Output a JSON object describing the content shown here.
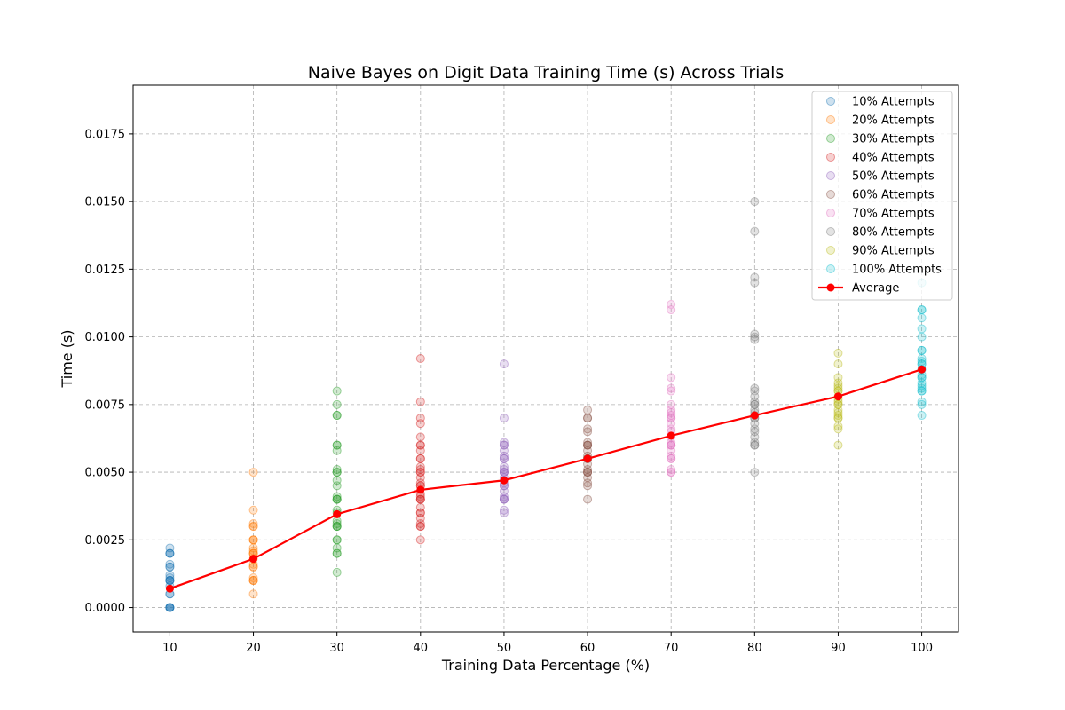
{
  "chart_data": {
    "type": "scatter",
    "title": "Naive Bayes on Digit Data Training Time (s) Across Trials",
    "xlabel": "Training Data Percentage (%)",
    "ylabel": "Time (s)",
    "xlim": [
      5.6,
      104.4
    ],
    "ylim": [
      -0.0009,
      0.0193
    ],
    "x_ticks": [
      10,
      20,
      30,
      40,
      50,
      60,
      70,
      80,
      90,
      100
    ],
    "y_ticks": [
      0.0,
      0.0025,
      0.005,
      0.0075,
      0.01,
      0.0125,
      0.015,
      0.0175
    ],
    "y_tick_labels": [
      "0.0000",
      "0.0025",
      "0.0050",
      "0.0075",
      "0.0100",
      "0.0125",
      "0.0150",
      "0.0175"
    ],
    "grid": true,
    "legend_position": "top-right",
    "series": [
      {
        "name": "10% Attempts",
        "color": "#1f77b4",
        "x": 10,
        "values": [
          0.0,
          0.0,
          0.0,
          0.0,
          0.0,
          0.0005,
          0.0005,
          0.0008,
          0.001,
          0.001,
          0.001,
          0.001,
          0.0011,
          0.0012,
          0.0015,
          0.0015,
          0.0016,
          0.002,
          0.002,
          0.002,
          0.0022
        ]
      },
      {
        "name": "20% Attempts",
        "color": "#ff7f0e",
        "x": 20,
        "values": [
          0.0005,
          0.001,
          0.001,
          0.001,
          0.0011,
          0.0015,
          0.0015,
          0.0016,
          0.0018,
          0.002,
          0.002,
          0.002,
          0.0021,
          0.0022,
          0.0025,
          0.0025,
          0.0025,
          0.003,
          0.003,
          0.0031,
          0.0036,
          0.005
        ]
      },
      {
        "name": "30% Attempts",
        "color": "#2ca02c",
        "x": 30,
        "values": [
          0.0013,
          0.002,
          0.002,
          0.0022,
          0.0025,
          0.0025,
          0.003,
          0.003,
          0.003,
          0.0031,
          0.0032,
          0.0035,
          0.0036,
          0.004,
          0.004,
          0.004,
          0.0041,
          0.0045,
          0.0047,
          0.005,
          0.005,
          0.0051,
          0.0058,
          0.006,
          0.006,
          0.0071,
          0.0071,
          0.0075,
          0.008
        ]
      },
      {
        "name": "40% Attempts",
        "color": "#d62728",
        "x": 40,
        "values": [
          0.0025,
          0.003,
          0.003,
          0.0031,
          0.0033,
          0.0035,
          0.0035,
          0.0037,
          0.004,
          0.004,
          0.004,
          0.0041,
          0.0042,
          0.0045,
          0.0045,
          0.0046,
          0.0048,
          0.005,
          0.005,
          0.0051,
          0.0052,
          0.0055,
          0.0055,
          0.0058,
          0.006,
          0.006,
          0.0063,
          0.0068,
          0.007,
          0.0076,
          0.0092
        ]
      },
      {
        "name": "50% Attempts",
        "color": "#9467bd",
        "x": 50,
        "values": [
          0.0035,
          0.0036,
          0.004,
          0.004,
          0.004,
          0.0041,
          0.0043,
          0.0045,
          0.0045,
          0.0046,
          0.0048,
          0.005,
          0.005,
          0.005,
          0.0051,
          0.0052,
          0.0055,
          0.0055,
          0.0056,
          0.0058,
          0.006,
          0.006,
          0.0061,
          0.007,
          0.009
        ]
      },
      {
        "name": "60% Attempts",
        "color": "#8c564b",
        "x": 60,
        "values": [
          0.004,
          0.0045,
          0.0046,
          0.0048,
          0.005,
          0.005,
          0.005,
          0.0051,
          0.0053,
          0.0055,
          0.0055,
          0.0055,
          0.0056,
          0.0058,
          0.006,
          0.006,
          0.006,
          0.0061,
          0.0065,
          0.0066,
          0.007,
          0.007,
          0.0073
        ]
      },
      {
        "name": "70% Attempts",
        "color": "#e377c2",
        "x": 70,
        "values": [
          0.005,
          0.005,
          0.0051,
          0.0055,
          0.0055,
          0.0056,
          0.0058,
          0.006,
          0.006,
          0.006,
          0.0061,
          0.0063,
          0.0065,
          0.0066,
          0.0068,
          0.007,
          0.007,
          0.0071,
          0.0072,
          0.0073,
          0.0075,
          0.008,
          0.0081,
          0.0085,
          0.011,
          0.0112
        ]
      },
      {
        "name": "80% Attempts",
        "color": "#7f7f7f",
        "x": 80,
        "values": [
          0.005,
          0.006,
          0.006,
          0.0061,
          0.0063,
          0.0065,
          0.0066,
          0.0068,
          0.007,
          0.007,
          0.0071,
          0.0072,
          0.0073,
          0.0075,
          0.0075,
          0.0076,
          0.0078,
          0.008,
          0.0081,
          0.0099,
          0.01,
          0.0101,
          0.012,
          0.0122,
          0.0139,
          0.015
        ]
      },
      {
        "name": "90% Attempts",
        "color": "#bcbd22",
        "x": 90,
        "values": [
          0.006,
          0.0066,
          0.0067,
          0.007,
          0.007,
          0.0071,
          0.0072,
          0.0073,
          0.0075,
          0.0075,
          0.0076,
          0.0077,
          0.0078,
          0.008,
          0.008,
          0.0081,
          0.0082,
          0.0083,
          0.0085,
          0.009,
          0.0094
        ]
      },
      {
        "name": "100% Attempts",
        "color": "#17becf",
        "x": 100,
        "values": [
          0.0071,
          0.0075,
          0.0076,
          0.008,
          0.008,
          0.0081,
          0.0082,
          0.0083,
          0.0085,
          0.0085,
          0.0086,
          0.0088,
          0.009,
          0.009,
          0.0091,
          0.0092,
          0.0095,
          0.0095,
          0.01,
          0.0103,
          0.0107,
          0.011,
          0.011,
          0.012
        ]
      }
    ],
    "average": {
      "name": "Average",
      "color": "#ff0000",
      "x": [
        10,
        20,
        30,
        40,
        50,
        60,
        70,
        80,
        90,
        100
      ],
      "y": [
        0.0007,
        0.0018,
        0.00345,
        0.00435,
        0.0047,
        0.0055,
        0.00635,
        0.0071,
        0.0078,
        0.0088
      ]
    }
  }
}
